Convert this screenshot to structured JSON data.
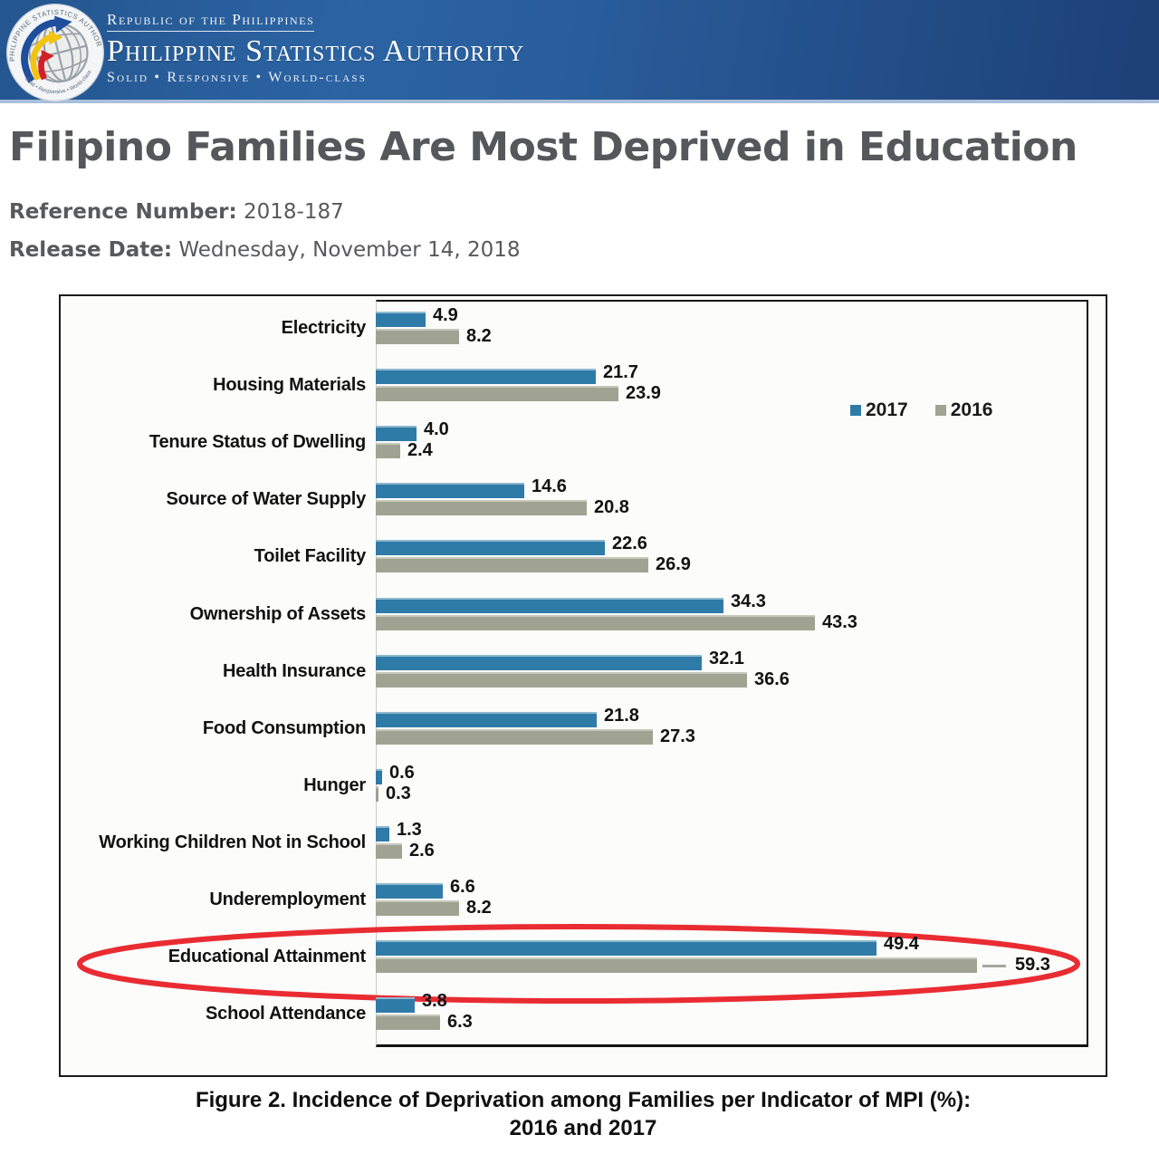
{
  "header": {
    "republic_line": "Republic of the Philippines",
    "org_name": "Philippine Statistics Authority",
    "tagline": "Solid • Responsive • World-class",
    "logo": {
      "ring_top": "PHILIPPINE STATISTICS AUTHORITY",
      "ring_bottom": "Solid • Responsive • World-class"
    }
  },
  "article": {
    "title": "Filipino Families Are Most Deprived in Education",
    "reference_label": "Reference Number:",
    "reference_value": "2018-187",
    "release_label": "Release Date:",
    "release_value": "Wednesday, November 14, 2018"
  },
  "chart_data": {
    "type": "bar",
    "orientation": "horizontal",
    "title": "",
    "caption_line1": "Figure 2. Incidence of Deprivation among Families per Indicator of MPI (%):",
    "caption_line2": "2016 and 2017",
    "categories": [
      "Electricity",
      "Housing Materials",
      "Tenure Status of Dwelling",
      "Source of Water Supply",
      "Toilet Facility",
      "Ownership of Assets",
      "Health Insurance",
      "Food Consumption",
      "Hunger",
      "Working Children Not in School",
      "Underemployment",
      "Educational Attainment",
      "School Attendance"
    ],
    "series": [
      {
        "name": "2017",
        "color": "#2F7BA8",
        "values": [
          4.9,
          21.7,
          4.0,
          14.6,
          22.6,
          34.3,
          32.1,
          21.8,
          0.6,
          1.3,
          6.6,
          49.4,
          3.8
        ]
      },
      {
        "name": "2016",
        "color": "#A0A392",
        "values": [
          8.2,
          23.9,
          2.4,
          20.8,
          26.9,
          43.3,
          36.6,
          27.3,
          0.3,
          2.6,
          8.2,
          59.3,
          6.3
        ]
      }
    ],
    "xlim": [
      0,
      70
    ],
    "grid": false,
    "legend_position": "upper-right",
    "annotation": {
      "type": "hand-drawn-ellipse",
      "target_category": "Educational Attainment",
      "color": "#E8232A"
    },
    "label_leader_line": {
      "series": "2016",
      "category": "Educational Attainment"
    }
  }
}
